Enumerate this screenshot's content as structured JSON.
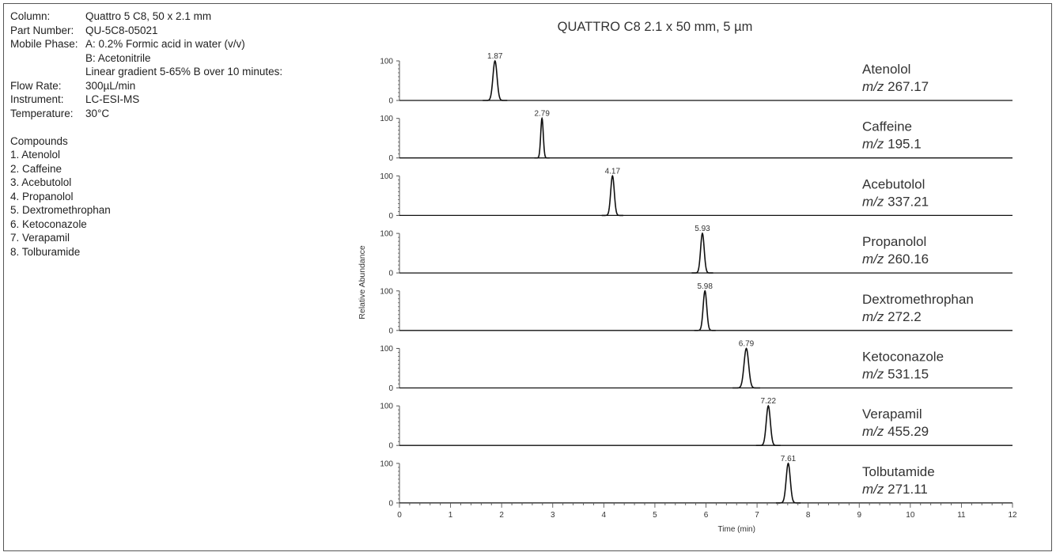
{
  "info": {
    "rows": [
      {
        "label": "Column:",
        "value": "Quattro 5 C8, 50 x 2.1 mm"
      },
      {
        "label": "Part Number:",
        "value": "QU-5C8-05021"
      },
      {
        "label": "Mobile Phase:",
        "value": "A: 0.2% Formic acid in water (v/v)"
      },
      {
        "label": "Flow Rate:",
        "value": "300µL/min"
      },
      {
        "label": "Instrument:",
        "value": "LC-ESI-MS"
      },
      {
        "label": "Temperature:",
        "value": "30°C"
      }
    ],
    "mobile_phase_extra": [
      "B: Acetonitrile",
      "Linear gradient 5-65% B over 10 minutes:"
    ],
    "compounds_title": "Compounds",
    "compounds": [
      "1. Atenolol",
      "2. Caffeine",
      "3. Acebutolol",
      "4. Propanolol",
      "5. Dextromethrophan",
      "6. Ketoconazole",
      "7. Verapamil",
      "8. Tolburamide"
    ]
  },
  "chart_data": {
    "type": "line",
    "title": "QUATTRO C8  2.1 x 50 mm, 5 µm",
    "xlabel": "Time (min)",
    "ylabel": "Relative Abundance",
    "xlim": [
      0,
      12
    ],
    "ylim": [
      0,
      100
    ],
    "x_ticks": [
      "0",
      "1",
      "2",
      "3",
      "4",
      "5",
      "6",
      "7",
      "8",
      "9",
      "10",
      "11",
      "12"
    ],
    "y_ticks": [
      "0",
      "100"
    ],
    "mz_prefix": "m/z",
    "series": [
      {
        "name": "Atenolol",
        "mz": "267.17",
        "peak_rt": 1.87,
        "peak_label": "1.87",
        "peak_height": 100,
        "width": 0.04
      },
      {
        "name": "Caffeine",
        "mz": "195.1",
        "peak_rt": 2.79,
        "peak_label": "2.79",
        "peak_height": 100,
        "width": 0.025
      },
      {
        "name": "Acebutolol",
        "mz": "337.21",
        "peak_rt": 4.17,
        "peak_label": "4.17",
        "peak_height": 100,
        "width": 0.035
      },
      {
        "name": "Propanolol",
        "mz": "260.16",
        "peak_rt": 5.93,
        "peak_label": "5.93",
        "peak_height": 100,
        "width": 0.035
      },
      {
        "name": "Dextromethrophan",
        "mz": "272.2",
        "peak_rt": 5.98,
        "peak_label": "5.98",
        "peak_height": 100,
        "width": 0.035
      },
      {
        "name": "Ketoconazole",
        "mz": "531.15",
        "peak_rt": 6.79,
        "peak_label": "6.79",
        "peak_height": 100,
        "width": 0.045
      },
      {
        "name": "Verapamil",
        "mz": "455.29",
        "peak_rt": 7.22,
        "peak_label": "7.22",
        "peak_height": 100,
        "width": 0.04
      },
      {
        "name": "Tolbutamide",
        "mz": "271.11",
        "peak_rt": 7.61,
        "peak_label": "7.61",
        "peak_height": 100,
        "width": 0.04
      }
    ],
    "colors": {
      "trace": "#111111",
      "axis": "#555555",
      "text": "#333333"
    }
  }
}
